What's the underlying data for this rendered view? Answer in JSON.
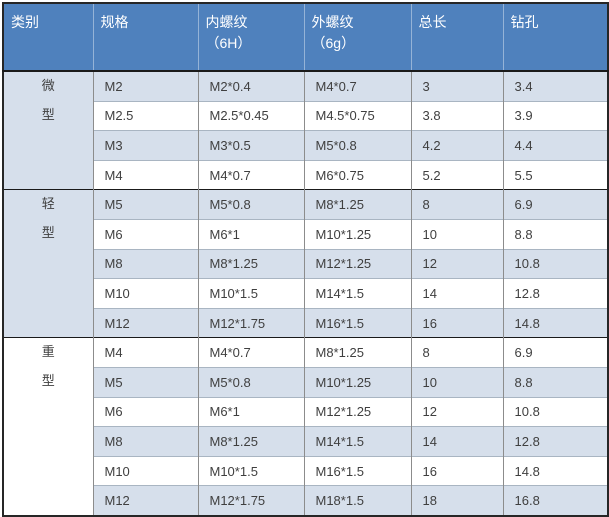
{
  "table": {
    "columns": [
      {
        "label": "类别",
        "subline": ""
      },
      {
        "label": "规格",
        "subline": ""
      },
      {
        "label": "内螺纹",
        "subline": "（6H）"
      },
      {
        "label": "外螺纹",
        "subline": "（6g）"
      },
      {
        "label": "总长",
        "subline": ""
      },
      {
        "label": "钻孔",
        "subline": ""
      }
    ],
    "groups": [
      {
        "category": "微型",
        "rows": [
          [
            "M2",
            "M2*0.4",
            "M4*0.7",
            "3",
            "3.4"
          ],
          [
            "M2.5",
            "M2.5*0.45",
            "M4.5*0.75",
            "3.8",
            "3.9"
          ],
          [
            "M3",
            "M3*0.5",
            "M5*0.8",
            "4.2",
            "4.4"
          ],
          [
            "M4",
            "M4*0.7",
            "M6*0.75",
            "5.2",
            "5.5"
          ]
        ]
      },
      {
        "category": "轻型",
        "rows": [
          [
            "M5",
            "M5*0.8",
            "M8*1.25",
            "8",
            "6.9"
          ],
          [
            "M6",
            "M6*1",
            "M10*1.25",
            "10",
            "8.8"
          ],
          [
            "M8",
            "M8*1.25",
            "M12*1.25",
            "12",
            "10.8"
          ],
          [
            "M10",
            "M10*1.5",
            "M14*1.5",
            "14",
            "12.8"
          ],
          [
            "M12",
            "M12*1.75",
            "M16*1.5",
            "16",
            "14.8"
          ]
        ]
      },
      {
        "category": "重型",
        "rows": [
          [
            "M4",
            "M4*0.7",
            "M8*1.25",
            "8",
            "6.9"
          ],
          [
            "M5",
            "M5*0.8",
            "M10*1.25",
            "10",
            "8.8"
          ],
          [
            "M6",
            "M6*1",
            "M12*1.25",
            "12",
            "10.8"
          ],
          [
            "M8",
            "M8*1.25",
            "M14*1.5",
            "14",
            "12.8"
          ],
          [
            "M10",
            "M10*1.5",
            "M16*1.5",
            "16",
            "14.8"
          ],
          [
            "M12",
            "M12*1.75",
            "M18*1.5",
            "18",
            "16.8"
          ]
        ]
      }
    ]
  },
  "colors": {
    "header_bg": "#4F81BD",
    "header_text": "#FFFFFF",
    "band_row_bg": "#D6DFEB",
    "category_bg": "#D2DCE9",
    "plain_row_bg": "#FFFFFF",
    "body_text": "#3F3F3F",
    "outer_border": "#262626",
    "group_border": "#1A1A1A",
    "column_border": "#8C8C8C",
    "row_border": "#A9B5C2",
    "header_divider": "#95B3D7"
  }
}
